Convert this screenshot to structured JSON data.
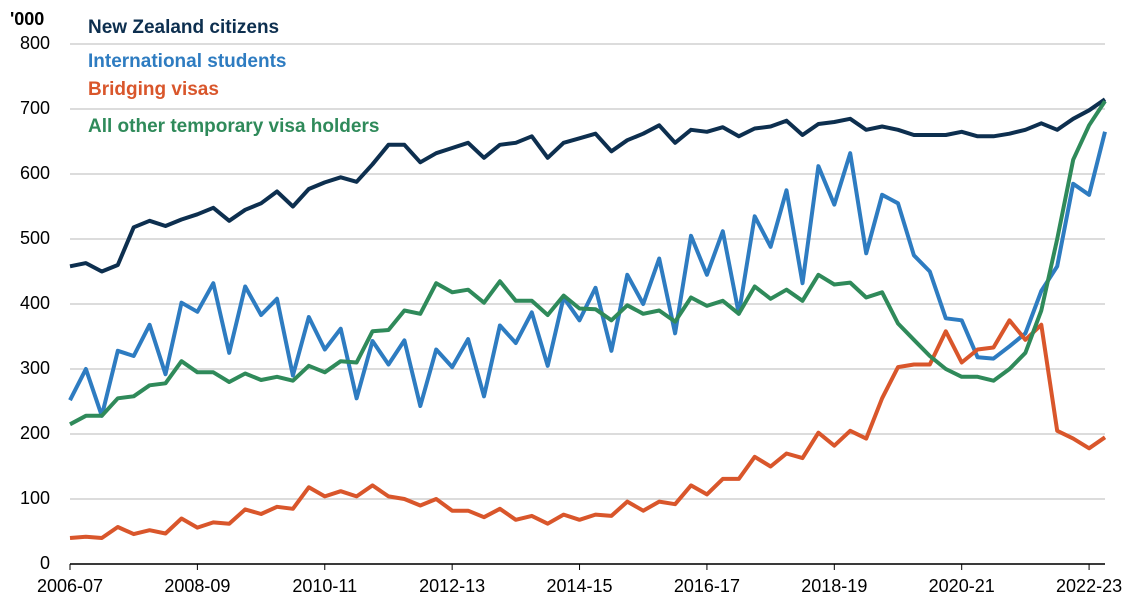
{
  "chart_data": {
    "type": "line",
    "y_unit_label": "'000",
    "categories": [
      "2006-07",
      null,
      null,
      null,
      null,
      null,
      null,
      null,
      "2008-09",
      null,
      null,
      null,
      null,
      null,
      null,
      null,
      "2010-11",
      null,
      null,
      null,
      null,
      null,
      null,
      null,
      "2012-13",
      null,
      null,
      null,
      null,
      null,
      null,
      null,
      "2014-15",
      null,
      null,
      null,
      null,
      null,
      null,
      null,
      "2016-17",
      null,
      null,
      null,
      null,
      null,
      null,
      null,
      "2018-19",
      null,
      null,
      null,
      null,
      null,
      null,
      null,
      "2020-21",
      null,
      null,
      null,
      null,
      null,
      null,
      null,
      "2022-23",
      null
    ],
    "ylim": [
      0,
      800
    ],
    "yticks": [
      0,
      100,
      200,
      300,
      400,
      500,
      600,
      700,
      800
    ],
    "grid": true,
    "series": [
      {
        "name": "New Zealand citizens",
        "color": "#0d2f4f",
        "values": [
          458,
          463,
          450,
          460,
          518,
          528,
          520,
          530,
          538,
          548,
          528,
          545,
          555,
          573,
          550,
          577,
          587,
          595,
          588,
          615,
          645,
          645,
          618,
          632,
          640,
          648,
          625,
          645,
          648,
          658,
          625,
          648,
          655,
          662,
          635,
          652,
          662,
          675,
          648,
          668,
          665,
          672,
          658,
          670,
          673,
          682,
          660,
          677,
          680,
          685,
          668,
          673,
          668,
          660,
          660,
          660,
          665,
          658,
          658,
          662,
          668,
          678,
          668,
          685,
          698,
          715
        ]
      },
      {
        "name": "International students",
        "color": "#2e7cc1",
        "values": [
          252,
          300,
          228,
          328,
          320,
          368,
          292,
          402,
          388,
          432,
          325,
          427,
          383,
          408,
          290,
          380,
          330,
          362,
          255,
          343,
          307,
          344,
          243,
          330,
          303,
          346,
          258,
          367,
          340,
          387,
          305,
          410,
          375,
          425,
          328,
          445,
          400,
          470,
          355,
          505,
          445,
          512,
          385,
          535,
          488,
          575,
          432,
          612,
          553,
          632,
          478,
          568,
          555,
          475,
          450,
          378,
          375,
          318,
          316,
          335,
          355,
          420,
          458,
          585,
          568,
          665
        ]
      },
      {
        "name": "Bridging visas",
        "color": "#d9562b",
        "values": [
          40,
          42,
          40,
          57,
          46,
          52,
          47,
          70,
          56,
          64,
          62,
          84,
          77,
          88,
          85,
          118,
          104,
          112,
          104,
          121,
          104,
          100,
          90,
          100,
          82,
          82,
          72,
          85,
          68,
          74,
          62,
          76,
          68,
          76,
          74,
          96,
          82,
          96,
          92,
          121,
          107,
          131,
          131,
          165,
          150,
          170,
          163,
          202,
          182,
          205,
          193,
          255,
          303,
          307,
          307,
          358,
          310,
          330,
          333,
          375,
          345,
          368,
          205,
          193,
          178,
          195
        ]
      },
      {
        "name": "All other temporary visa holders",
        "color": "#2f8a5a",
        "values": [
          215,
          228,
          228,
          255,
          258,
          275,
          278,
          312,
          295,
          295,
          280,
          293,
          283,
          288,
          282,
          305,
          295,
          312,
          310,
          358,
          360,
          390,
          385,
          432,
          418,
          422,
          402,
          435,
          405,
          405,
          383,
          413,
          393,
          392,
          375,
          398,
          385,
          390,
          373,
          410,
          397,
          405,
          385,
          427,
          408,
          422,
          405,
          445,
          430,
          433,
          410,
          418,
          370,
          345,
          320,
          300,
          288,
          288,
          282,
          300,
          325,
          390,
          500,
          622,
          675,
          712
        ]
      }
    ]
  }
}
